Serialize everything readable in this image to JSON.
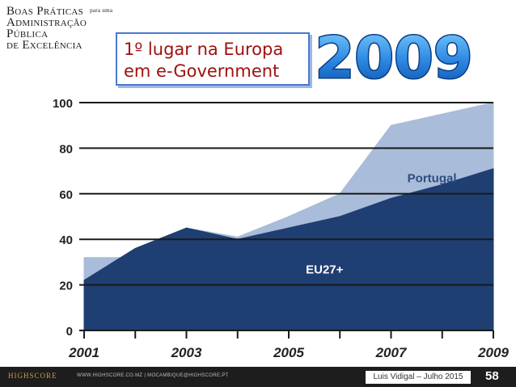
{
  "logo": {
    "line1": "Boas Práticas",
    "line1_small": "para uma",
    "line2": "Administração Pública",
    "line3": "de Excelência"
  },
  "callout": {
    "line1": "1º lugar na Europa",
    "line2": "em e-Government"
  },
  "big_year": "2009",
  "chart_data": {
    "type": "area",
    "x": [
      2001,
      2002,
      2003,
      2004,
      2005,
      2006,
      2007,
      2008,
      2009
    ],
    "x_tick_labels": [
      "2001",
      "2003",
      "2005",
      "2007",
      "2009"
    ],
    "y_tick_labels": [
      "0",
      "20",
      "40",
      "60",
      "80",
      "100"
    ],
    "ylim": [
      0,
      100
    ],
    "series": [
      {
        "name": "Portugal",
        "values": [
          32,
          32,
          45,
          41,
          50,
          60,
          90,
          95,
          100
        ],
        "color": "#a9bcd9"
      },
      {
        "name": "EU27+",
        "values": [
          22,
          36,
          45,
          40,
          45,
          50,
          58,
          64,
          71
        ],
        "color": "#1f3e72"
      }
    ],
    "grid": "horizontal",
    "legend": "inline-labels"
  },
  "footer": {
    "brand": "HIGHSCORE",
    "web": "WWW.HIGHSCORE.CO.MZ | MOCAMBIQUE@HIGHSCORE.PT",
    "author": "Luis Vidigal – Julho 2015",
    "page": "58"
  },
  "colors": {
    "accent_blue": "#4a78d0",
    "callout_text": "#a01010",
    "eu": "#1f3e72",
    "pt": "#a9bcd9"
  }
}
